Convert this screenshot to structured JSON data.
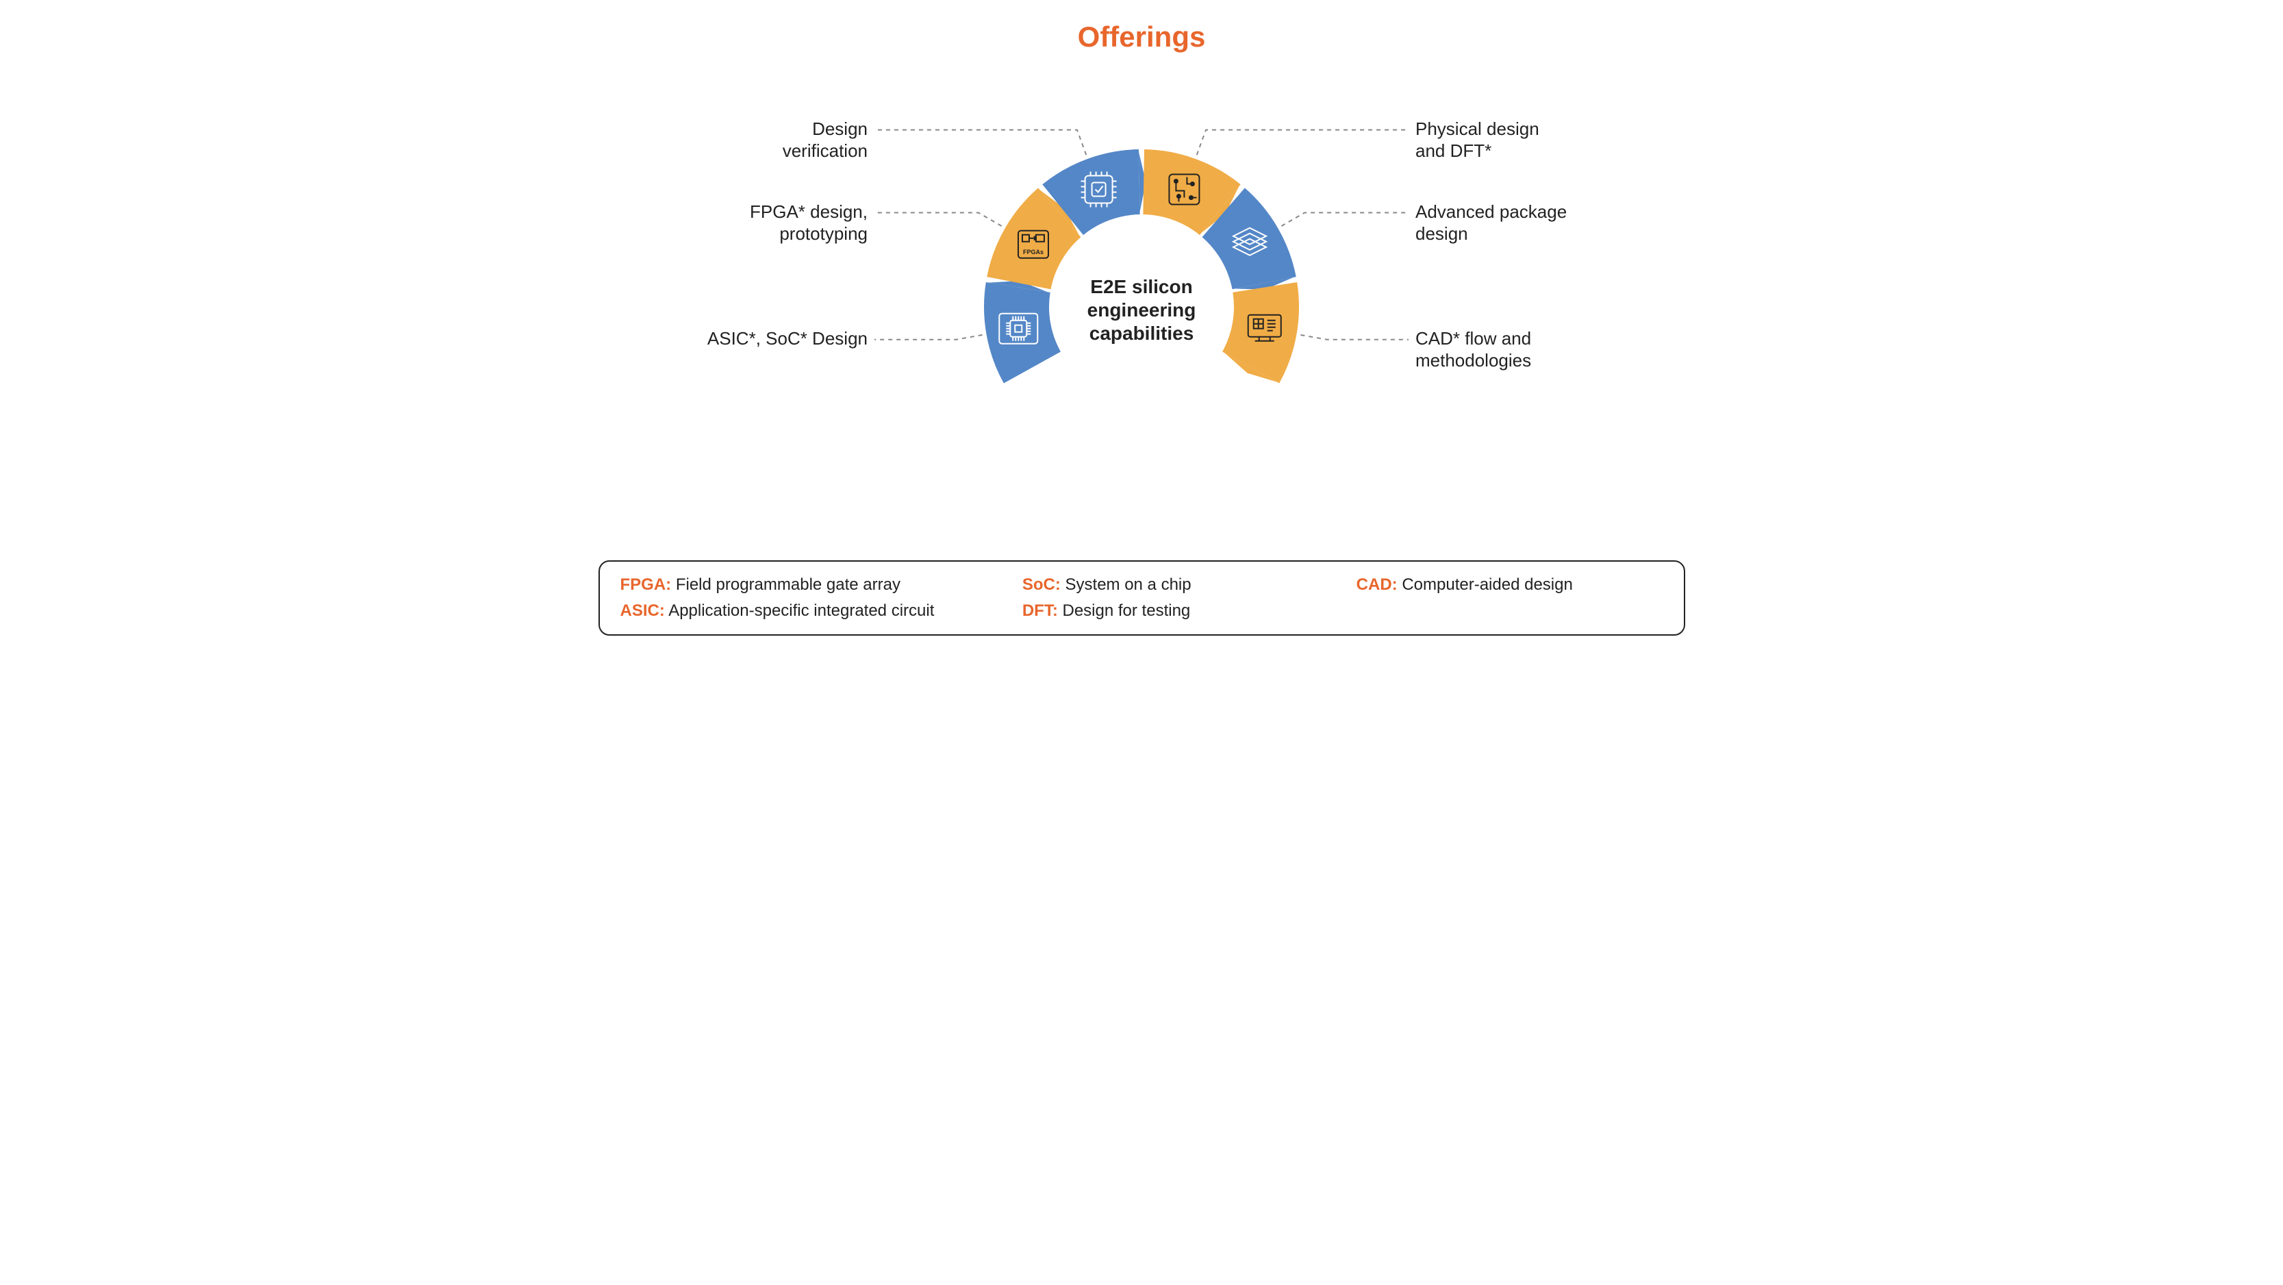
{
  "title": {
    "text": "Offerings",
    "color": "#e8662c",
    "fontsize": 42
  },
  "diagram": {
    "type": "radial-segments",
    "center_label": "E2E silicon\nengineering\ncapabilities",
    "center_fontsize": 28,
    "background_color": "#ffffff",
    "outer_radius": 230,
    "inner_radius": 135,
    "start_angle_deg": -210,
    "end_angle_deg": 30,
    "gap_deg": 2,
    "leader_color": "#888888",
    "leader_dash": "6,6",
    "segments": [
      {
        "id": "asic-soc",
        "label": "ASIC*, SoC* Design",
        "color": "#5487c7",
        "icon": "blueprint-chip",
        "icon_color": "#ffffff",
        "label_side": "left"
      },
      {
        "id": "fpga",
        "label": "FPGA* design,\nprototyping",
        "color": "#f0ac46",
        "icon": "fpga",
        "icon_color": "#222222",
        "label_side": "left"
      },
      {
        "id": "design-verification",
        "label": "Design\nverification",
        "color": "#5487c7",
        "icon": "cpu-check",
        "icon_color": "#ffffff",
        "label_side": "left"
      },
      {
        "id": "physical-design-dft",
        "label": "Physical design\nand DFT*",
        "color": "#f0ac46",
        "icon": "circuit",
        "icon_color": "#222222",
        "label_side": "right"
      },
      {
        "id": "advanced-package",
        "label": "Advanced package\ndesign",
        "color": "#5487c7",
        "icon": "layers",
        "icon_color": "#ffffff",
        "label_side": "right"
      },
      {
        "id": "cad-flow",
        "label": "CAD* flow and\nmethodologies",
        "color": "#f0ac46",
        "icon": "monitor-cad",
        "icon_color": "#222222",
        "label_side": "right"
      }
    ]
  },
  "legend": {
    "border_color": "#222222",
    "abbr_color": "#e8662c",
    "items": [
      {
        "abbr": "FPGA:",
        "def": "Field programmable gate array",
        "col": 1,
        "row": 1
      },
      {
        "abbr": "ASIC:",
        "def": "Application-specific integrated circuit",
        "col": 1,
        "row": 2
      },
      {
        "abbr": "SoC:",
        "def": "System on a chip",
        "col": 2,
        "row": 1
      },
      {
        "abbr": "DFT:",
        "def": "Design for testing",
        "col": 2,
        "row": 2
      },
      {
        "abbr": "CAD:",
        "def": "Computer-aided design",
        "col": 3,
        "row": 1
      }
    ]
  }
}
